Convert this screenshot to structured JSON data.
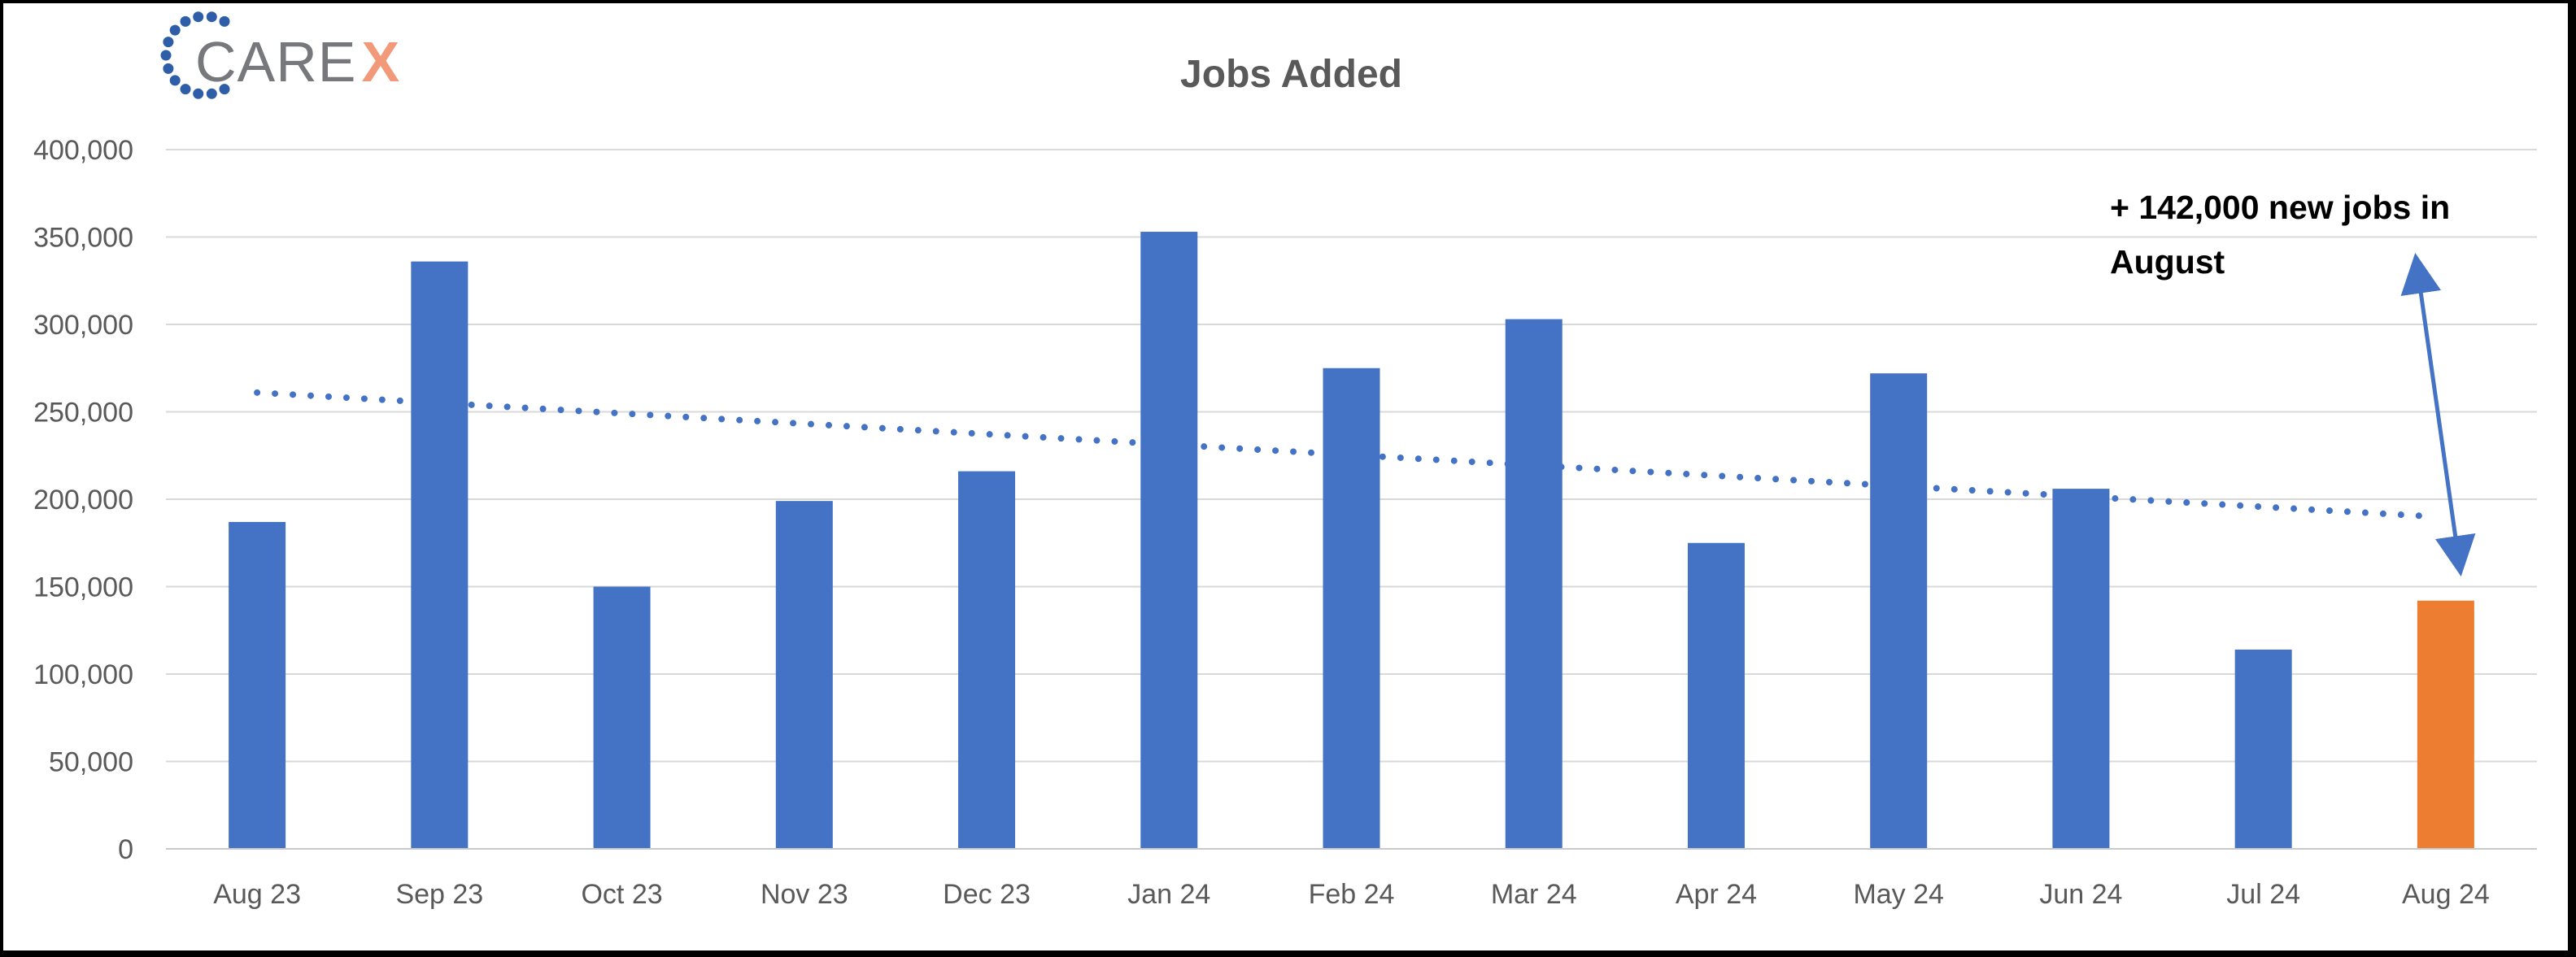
{
  "frame": {
    "background": "#ffffff",
    "border_color": "#000000"
  },
  "logo": {
    "word_gray": "CARE",
    "word_accent": "X",
    "gray_color": "#77787B",
    "accent_color": "#F2997A",
    "dot_color": "#2E5EA8"
  },
  "chart_data": {
    "type": "bar",
    "title": "Jobs Added",
    "title_color": "#595959",
    "categories": [
      "Aug 23",
      "Sep 23",
      "Oct 23",
      "Nov 23",
      "Dec 23",
      "Jan 24",
      "Feb 24",
      "Mar 24",
      "Apr 24",
      "May 24",
      "Jun 24",
      "Jul 24",
      "Aug 24"
    ],
    "values": [
      187000,
      336000,
      150000,
      199000,
      216000,
      353000,
      275000,
      303000,
      175000,
      272000,
      206000,
      114000,
      142000
    ],
    "bar_color": "#4472C4",
    "highlight_color": "#ED7D31",
    "highlight_index": 12,
    "xlabel": "",
    "ylabel": "",
    "ylim": [
      0,
      400000
    ],
    "y_tick_step": 50000,
    "grid": true,
    "gridline_color": "#D9D9D9",
    "axis_line_color": "#C9C9C9",
    "axis_text_color": "#595959",
    "legend_position": "none",
    "trendline": {
      "type": "linear",
      "style": "dotted",
      "color": "#4472C4",
      "start_value": 261000,
      "end_value": 190000
    },
    "annotation": {
      "text": "+ 142,000 new jobs in August",
      "text_color": "#000000",
      "arrow": "double-headed",
      "arrow_color": "#4472C4"
    }
  }
}
